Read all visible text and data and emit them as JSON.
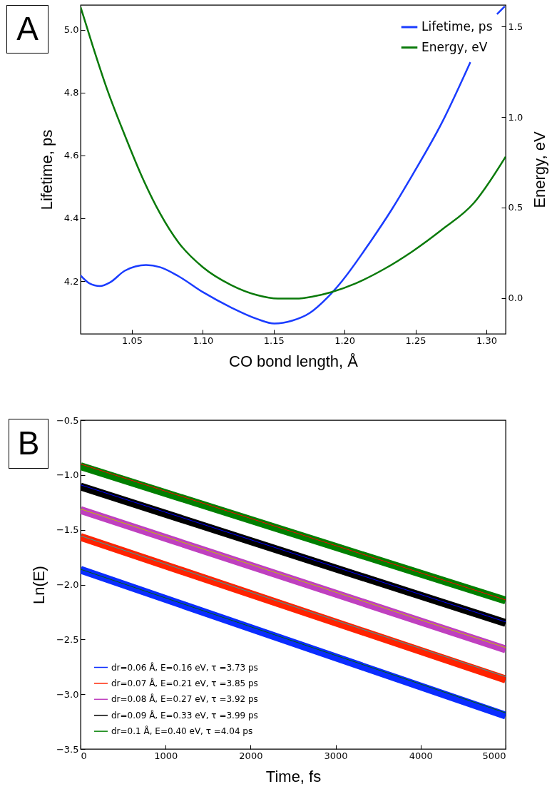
{
  "chart_data": [
    {
      "type": "line",
      "title": "A",
      "xlabel": "CO bond length, Å",
      "ylabel": "Lifetime, ps",
      "y2label": "Energy, eV",
      "xlim": [
        1.0138,
        1.3136
      ],
      "xticks": [
        1.05,
        {
          "value": 1.1,
          "label": "1.10"
        },
        1.15,
        {
          "value": 1.2,
          "label": "1.20"
        },
        1.25,
        {
          "value": 1.3,
          "label": "1.30"
        }
      ],
      "ylim": [
        4.032,
        5.079
      ],
      "yticks": [
        4.2,
        4.4,
        4.6,
        4.8,
        {
          "value": 5,
          "label": "5.0"
        }
      ],
      "y2lim": [
        -0.199,
        1.62
      ],
      "y2ticks": [
        {
          "value": 0,
          "label": "0.0"
        },
        0.5,
        {
          "value": 1,
          "label": "1.0"
        },
        1.5
      ],
      "legend": "top right",
      "series": [
        {
          "name": "Lifetime, ps",
          "color": "#1a3cff",
          "x": [
            1.0138,
            1.02,
            1.0274,
            1.035,
            1.045,
            1.06,
            1.07,
            1.0827,
            1.1,
            1.12,
            1.138,
            1.1505,
            1.163,
            1.1756,
            1.188,
            1.198,
            1.218,
            1.233,
            1.248,
            1.2686,
            1.2887,
            1.3,
            1.3075,
            1.313
          ],
          "values": [
            4.218,
            4.193,
            4.184,
            4.197,
            4.233,
            4.251,
            4.244,
            4.216,
            4.165,
            4.116,
            4.08,
            4.065,
            4.074,
            4.099,
            4.148,
            4.199,
            4.324,
            4.426,
            4.539,
            4.704,
            4.897,
            null,
            5.05,
            5.075
          ]
        },
        {
          "name": "Energy, eV",
          "color": "#0a7a0a",
          "axis": "y2",
          "x": [
            1.0138,
            1.0224,
            1.0324,
            1.045,
            1.0575,
            1.07,
            1.0827,
            1.1,
            1.12,
            1.138,
            1.153,
            1.1656,
            1.178,
            1.1907,
            1.208,
            1.228,
            1.248,
            1.2686,
            1.2912,
            1.3136
          ],
          "values": [
            1.609,
            1.393,
            1.156,
            0.899,
            0.663,
            0.465,
            0.308,
            0.17,
            0.071,
            0.016,
            -0.004,
            -0.004,
            0.008,
            0.032,
            0.081,
            0.16,
            0.258,
            0.377,
            0.525,
            0.781
          ]
        }
      ]
    },
    {
      "type": "line",
      "title": "B",
      "xlabel": "Time, fs",
      "ylabel": "Ln(E)",
      "xlim": [
        0,
        5000
      ],
      "xticks": [
        0,
        1000,
        2000,
        3000,
        4000,
        5000
      ],
      "ylim": [
        -3.5,
        -0.5
      ],
      "yticks": [
        {
          "value": -3.5,
          "label": "−3.5"
        },
        {
          "value": -3,
          "label": "−3.0"
        },
        {
          "value": -2.5,
          "label": "−2.5"
        },
        {
          "value": -2,
          "label": "−2.0"
        },
        {
          "value": -1.5,
          "label": "−1.5"
        },
        {
          "value": -1,
          "label": "−1.0"
        },
        {
          "value": -0.5,
          "label": "−0.5"
        }
      ],
      "legend": "bottom left",
      "series": [
        {
          "name": "dr=0.06 Å,  E=0.16 eV, τ =3.73 ps",
          "color": "#0a2cff",
          "x": [
            0,
            5000
          ],
          "values": [
            -1.865,
            -3.195
          ]
        },
        {
          "name": "dr=0.07 Å,  E=0.21 eV, τ =3.85 ps",
          "color": "#ff2200",
          "x": [
            0,
            5000
          ],
          "values": [
            -1.565,
            -2.865
          ]
        },
        {
          "name": "dr=0.08 Å,  E=0.27 eV, τ =3.92 ps",
          "color": "#bf40bf",
          "x": [
            0,
            5000
          ],
          "values": [
            -1.32,
            -2.59
          ]
        },
        {
          "name": "dr=0.09 Å,  E=0.33 eV, τ =3.99 ps",
          "color": "#000000",
          "x": [
            0,
            5000
          ],
          "values": [
            -1.105,
            -2.35
          ]
        },
        {
          "name": "dr=0.1 Å,  E=0.40 eV, τ =4.04 ps",
          "color": "#007f00",
          "x": [
            0,
            5000
          ],
          "values": [
            -0.92,
            -2.145
          ]
        },
        {
          "color": "#006400",
          "x": [
            0,
            5000
          ],
          "values": [
            -1.86,
            -3.17
          ]
        },
        {
          "color": "#2aa6a6",
          "x": [
            0,
            5000
          ],
          "values": [
            -1.555,
            -2.84
          ]
        },
        {
          "color": "#bfbf00",
          "x": [
            0,
            5000
          ],
          "values": [
            -1.31,
            -2.575
          ]
        },
        {
          "color": "#0000ff",
          "x": [
            0,
            5000
          ],
          "values": [
            -1.09,
            -2.34
          ]
        },
        {
          "color": "#ff0000",
          "x": [
            0,
            5000
          ],
          "values": [
            -0.9,
            -2.14
          ]
        }
      ]
    }
  ]
}
